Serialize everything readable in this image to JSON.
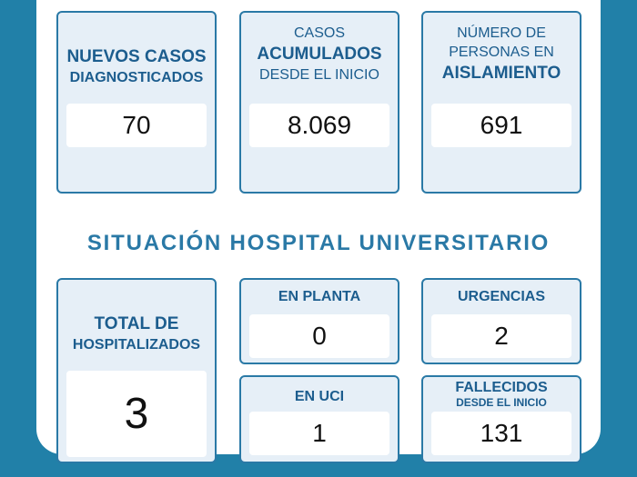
{
  "top_cards": [
    {
      "line1": "NUEVOS CASOS",
      "line2": "DIAGNOSTICADOS",
      "line3": "",
      "value": "70"
    },
    {
      "line1": "CASOS",
      "line2": "ACUMULADOS",
      "line3": "DESDE EL INICIO",
      "value": "8.069"
    },
    {
      "line1": "NÚMERO DE",
      "line2": "PERSONAS EN",
      "line3": "AISLAMIENTO",
      "value": "691"
    }
  ],
  "section_title": "SITUACIÓN HOSPITAL UNIVERSITARIO",
  "hospital": {
    "total": {
      "line1": "TOTAL DE",
      "line2": "HOSPITALIZADOS",
      "value": "3"
    },
    "planta": {
      "label": "EN PLANTA",
      "value": "0"
    },
    "urgencias": {
      "label": "URGENCIAS",
      "value": "2"
    },
    "uci": {
      "label": "EN UCI",
      "value": "1"
    },
    "fallecidos": {
      "label": "FALLECIDOS",
      "sublabel": "DESDE EL INICIO",
      "value": "131"
    }
  },
  "colors": {
    "background": "#2180a8",
    "card_fill": "#e6eff7",
    "card_border": "#2a79a6",
    "label": "#1c5d8e"
  }
}
